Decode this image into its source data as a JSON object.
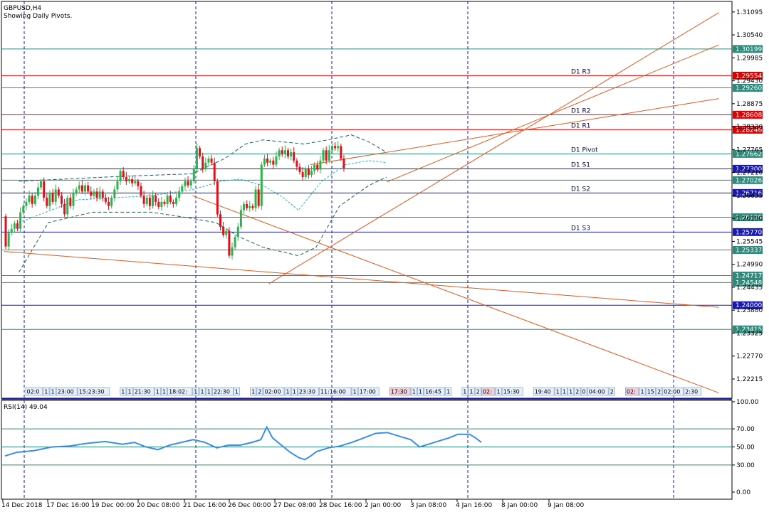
{
  "header": {
    "symbol": "GBPUSD,H4",
    "subtitle": "Showing Daily Pivots."
  },
  "colors": {
    "bull": "#2db34a",
    "bear": "#e0101a",
    "pivot_red": "#e00000",
    "level_teal": "#2e8a7a",
    "level_blue": "#1a1ab0",
    "trend": "#e05a20",
    "band": "#1a6060",
    "rsi": "#3a8ee6",
    "sep": "#1a1aa0",
    "vline": "#1a1aa0"
  },
  "chart_data": [
    {
      "type": "candlestick",
      "title": "GBPUSD,H4",
      "ylim": [
        1.2175,
        1.3135
      ],
      "y_ticks": [
        "1.31095",
        "1.30540",
        "1.29985",
        "1.29430",
        "1.28875",
        "1.28320",
        "1.27765",
        "1.27210",
        "1.26655",
        "1.26100",
        "1.25545",
        "1.24990",
        "1.24435",
        "1.23880",
        "1.23325",
        "1.22770",
        "1.22215"
      ],
      "x_ticks": [
        "14 Dec 2018",
        "17 Dec 16:00",
        "19 Dec 00:00",
        "20 Dec 08:00",
        "21 Dec 16:00",
        "26 Dec 00:00",
        "27 Dec 08:00",
        "28 Dec 16:00",
        "2 Jan 00:00",
        "3 Jan 08:00",
        "4 Jan 16:00",
        "8 Jan 00:00",
        "9 Jan 08:00"
      ],
      "candles": [
        [
          1.2615,
          1.2542
        ],
        [
          1.2542,
          1.2575
        ],
        [
          1.2575,
          1.2585
        ],
        [
          1.2585,
          1.2598
        ],
        [
          1.2598,
          1.2585
        ],
        [
          1.2585,
          1.2625
        ],
        [
          1.2625,
          1.264
        ],
        [
          1.264,
          1.265
        ],
        [
          1.265,
          1.2665
        ],
        [
          1.2665,
          1.2645
        ],
        [
          1.2645,
          1.2665
        ],
        [
          1.2665,
          1.2685
        ],
        [
          1.2685,
          1.27
        ],
        [
          1.27,
          1.266
        ],
        [
          1.266,
          1.264
        ],
        [
          1.264,
          1.2672
        ],
        [
          1.2672,
          1.265
        ],
        [
          1.265,
          1.268
        ],
        [
          1.268,
          1.2665
        ],
        [
          1.2665,
          1.2645
        ],
        [
          1.2645,
          1.262
        ],
        [
          1.262,
          1.266
        ],
        [
          1.266,
          1.264
        ],
        [
          1.264,
          1.267
        ],
        [
          1.267,
          1.268
        ],
        [
          1.268,
          1.269
        ],
        [
          1.269,
          1.2675
        ],
        [
          1.2675,
          1.269
        ],
        [
          1.269,
          1.2675
        ],
        [
          1.2675,
          1.2665
        ],
        [
          1.2665,
          1.2675
        ],
        [
          1.2675,
          1.266
        ],
        [
          1.266,
          1.2675
        ],
        [
          1.2675,
          1.266
        ],
        [
          1.266,
          1.265
        ],
        [
          1.265,
          1.264
        ],
        [
          1.264,
          1.266
        ],
        [
          1.266,
          1.268
        ],
        [
          1.268,
          1.27
        ],
        [
          1.27,
          1.2725
        ],
        [
          1.2725,
          1.271
        ],
        [
          1.271,
          1.27
        ],
        [
          1.27,
          1.2705
        ],
        [
          1.2705,
          1.2695
        ],
        [
          1.2695,
          1.27
        ],
        [
          1.27,
          1.2688
        ],
        [
          1.2688,
          1.2665
        ],
        [
          1.2665,
          1.2645
        ],
        [
          1.2645,
          1.266
        ],
        [
          1.266,
          1.264
        ],
        [
          1.264,
          1.2665
        ],
        [
          1.2665,
          1.265
        ],
        [
          1.265,
          1.2638
        ],
        [
          1.2638,
          1.265
        ],
        [
          1.265,
          1.2645
        ],
        [
          1.2645,
          1.2665
        ],
        [
          1.2665,
          1.265
        ],
        [
          1.265,
          1.2645
        ],
        [
          1.2645,
          1.266
        ],
        [
          1.266,
          1.2675
        ],
        [
          1.2675,
          1.2688
        ],
        [
          1.2688,
          1.27
        ],
        [
          1.27,
          1.269
        ],
        [
          1.269,
          1.27
        ],
        [
          1.27,
          1.273
        ],
        [
          1.273,
          1.278
        ],
        [
          1.278,
          1.276
        ],
        [
          1.276,
          1.273
        ],
        [
          1.273,
          1.2745
        ],
        [
          1.2745,
          1.2755
        ],
        [
          1.2755,
          1.2745
        ],
        [
          1.2745,
          1.27
        ],
        [
          1.27,
          1.262
        ],
        [
          1.262,
          1.259
        ],
        [
          1.259,
          1.257
        ],
        [
          1.257,
          1.258
        ],
        [
          1.258,
          1.252
        ],
        [
          1.252,
          1.254
        ],
        [
          1.254,
          1.2565
        ],
        [
          1.2565,
          1.259
        ],
        [
          1.259,
          1.263
        ],
        [
          1.263,
          1.2645
        ],
        [
          1.2645,
          1.2635
        ],
        [
          1.2635,
          1.264
        ],
        [
          1.264,
          1.2635
        ],
        [
          1.2635,
          1.268
        ],
        [
          1.268,
          1.264
        ],
        [
          1.264,
          1.274
        ],
        [
          1.274,
          1.2755
        ],
        [
          1.2755,
          1.2745
        ],
        [
          1.2745,
          1.275
        ],
        [
          1.275,
          1.274
        ],
        [
          1.274,
          1.276
        ],
        [
          1.276,
          1.2775
        ],
        [
          1.2775,
          1.2765
        ],
        [
          1.2765,
          1.2775
        ],
        [
          1.2775,
          1.276
        ],
        [
          1.276,
          1.277
        ],
        [
          1.277,
          1.275
        ],
        [
          1.275,
          1.2735
        ],
        [
          1.2735,
          1.2722
        ],
        [
          1.2722,
          1.271
        ],
        [
          1.271,
          1.273
        ],
        [
          1.273,
          1.2715
        ],
        [
          1.2715,
          1.2725
        ],
        [
          1.2725,
          1.274
        ],
        [
          1.274,
          1.2728
        ],
        [
          1.2728,
          1.275
        ],
        [
          1.275,
          1.2775
        ],
        [
          1.2775,
          1.275
        ],
        [
          1.275,
          1.2775
        ],
        [
          1.2775,
          1.2785
        ],
        [
          1.2785,
          1.278
        ],
        [
          1.278,
          1.2785
        ],
        [
          1.2785,
          1.2755
        ],
        [
          1.2755,
          1.2732
        ]
      ],
      "levels": [
        {
          "value": 1.30199,
          "label": "1.30199",
          "kind": "teal"
        },
        {
          "value": 1.29554,
          "label": "1.29554",
          "kind": "red",
          "name": "D1 R3"
        },
        {
          "value": 1.2926,
          "label": "1.29260",
          "kind": "teal"
        },
        {
          "value": 1.28608,
          "label": "1.28608",
          "kind": "red",
          "name": "D1 R2"
        },
        {
          "value": 1.28246,
          "label": "1.28246",
          "kind": "red",
          "name": "D1 R1"
        },
        {
          "value": 1.27662,
          "label": "1.27662",
          "kind": "teal",
          "name": "D1 Pivot"
        },
        {
          "value": 1.273,
          "label": "1.27300",
          "kind": "blue",
          "name": "D1 S1"
        },
        {
          "value": 1.27026,
          "label": "1.27026",
          "kind": "teal"
        },
        {
          "value": 1.26716,
          "label": "1.26716",
          "kind": "blue",
          "name": "D1 S2"
        },
        {
          "value": 1.26129,
          "label": "1.26129",
          "kind": "teal"
        },
        {
          "value": 1.2577,
          "label": "1.25770",
          "kind": "blue",
          "name": "D1 S3"
        },
        {
          "value": 1.25337,
          "label": "1.25337",
          "kind": "teal"
        },
        {
          "value": 1.24717,
          "label": "1.24717",
          "kind": "teal"
        },
        {
          "value": 1.24548,
          "label": "1.24548",
          "kind": "teal"
        },
        {
          "value": 1.24,
          "label": "1.24000",
          "kind": "blue"
        },
        {
          "value": 1.23415,
          "label": "1.23415",
          "kind": "teal"
        }
      ],
      "trendlines": [
        {
          "from": [
            0,
            1.253
          ],
          "to": [
            243,
            1.2395
          ]
        },
        {
          "from": [
            64,
            1.2665
          ],
          "to": [
            243,
            1.2188
          ]
        },
        {
          "from": [
            90,
            1.2452
          ],
          "to": [
            243,
            1.3108
          ]
        },
        {
          "from": [
            104,
            1.274
          ],
          "to": [
            243,
            1.29
          ]
        },
        {
          "from": [
            130,
            1.2698
          ],
          "to": [
            243,
            1.303
          ]
        }
      ],
      "band_upper": [
        [
          5,
          1.27
        ],
        [
          20,
          1.2705
        ],
        [
          40,
          1.2712
        ],
        [
          64,
          1.2718
        ],
        [
          75,
          1.2755
        ],
        [
          82,
          1.279
        ],
        [
          88,
          1.28
        ],
        [
          95,
          1.2795
        ],
        [
          102,
          1.279
        ],
        [
          110,
          1.28
        ],
        [
          118,
          1.2812
        ],
        [
          124,
          1.2795
        ],
        [
          130,
          1.277
        ]
      ],
      "band_lower": [
        [
          5,
          1.248
        ],
        [
          15,
          1.26
        ],
        [
          30,
          1.2625
        ],
        [
          50,
          1.2625
        ],
        [
          64,
          1.261
        ],
        [
          72,
          1.26
        ],
        [
          80,
          1.2565
        ],
        [
          88,
          1.254
        ],
        [
          94,
          1.253
        ],
        [
          100,
          1.252
        ],
        [
          106,
          1.254
        ],
        [
          114,
          1.264
        ],
        [
          124,
          1.269
        ],
        [
          130,
          1.271
        ]
      ],
      "band_mid": [
        [
          5,
          1.26
        ],
        [
          25,
          1.2655
        ],
        [
          50,
          1.2665
        ],
        [
          64,
          1.268
        ],
        [
          74,
          1.27
        ],
        [
          80,
          1.2705
        ],
        [
          88,
          1.269
        ],
        [
          95,
          1.266
        ],
        [
          100,
          1.263
        ],
        [
          108,
          1.27
        ],
        [
          116,
          1.274
        ],
        [
          124,
          1.275
        ],
        [
          130,
          1.2745
        ]
      ],
      "events": [
        "02:0",
        "1",
        "1",
        "23:00",
        "15:23:30",
        "1",
        "1",
        "21:30",
        "1",
        "1",
        "18:02:",
        "1",
        "1",
        "1",
        "22:30",
        "1",
        "1",
        "2",
        "02:00",
        "1",
        "1",
        "23:30",
        "11:16:00",
        "1",
        "17:00",
        "17:30",
        "1",
        "1",
        "16:45",
        "1",
        "1",
        "1",
        "2",
        "02:",
        "1",
        "15:30",
        "19:40",
        "1",
        "1",
        "1",
        "2",
        "0",
        "04:00",
        "2",
        "02:",
        "1",
        "15",
        "2",
        "02:00",
        "2:30"
      ]
    },
    {
      "type": "line",
      "title": "RSI(14) 49.04",
      "ylim": [
        0,
        100
      ],
      "y_ticks": [
        "100.00",
        "70.00",
        "50.00",
        "30.00",
        "0.00"
      ],
      "levels": [
        70,
        50,
        30
      ],
      "values": [
        [
          0,
          40
        ],
        [
          4,
          44
        ],
        [
          10,
          46
        ],
        [
          16,
          50
        ],
        [
          22,
          51
        ],
        [
          28,
          54
        ],
        [
          34,
          56
        ],
        [
          40,
          53
        ],
        [
          44,
          55
        ],
        [
          48,
          50
        ],
        [
          52,
          47
        ],
        [
          56,
          52
        ],
        [
          60,
          55
        ],
        [
          64,
          58
        ],
        [
          68,
          55
        ],
        [
          72,
          49
        ],
        [
          76,
          52
        ],
        [
          80,
          52
        ],
        [
          84,
          55
        ],
        [
          87,
          58
        ],
        [
          89,
          72
        ],
        [
          91,
          60
        ],
        [
          94,
          52
        ],
        [
          97,
          44
        ],
        [
          100,
          38
        ],
        [
          102,
          36
        ],
        [
          104,
          40
        ],
        [
          106,
          45
        ],
        [
          110,
          49
        ],
        [
          114,
          51
        ],
        [
          118,
          55
        ],
        [
          122,
          60
        ],
        [
          126,
          65
        ],
        [
          130,
          66
        ],
        [
          134,
          62
        ],
        [
          138,
          58
        ],
        [
          141,
          50
        ],
        [
          144,
          53
        ],
        [
          148,
          57
        ],
        [
          151,
          60
        ],
        [
          154,
          64
        ],
        [
          158,
          64
        ],
        [
          160,
          60
        ],
        [
          162,
          55
        ]
      ]
    }
  ]
}
